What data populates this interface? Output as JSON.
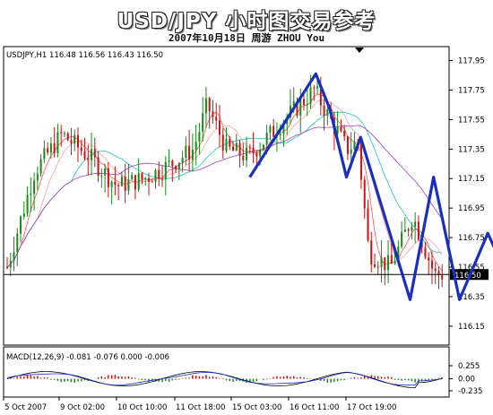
{
  "header": {
    "title": "USD/JPY 小时图交易参考",
    "subtitle": "2007年10月18日    周游 ZHOU You"
  },
  "chart_data": [
    {
      "type": "candlestick",
      "info_label": "USDJPY,H1  116.48 116.56 116.43 116.50",
      "price_axis": {
        "ylim": [
          116.04,
          118.02
        ],
        "ticks": [
          "117.95",
          "117.75",
          "117.55",
          "117.35",
          "117.15",
          "116.95",
          "116.75",
          "116.55",
          "116.35",
          "116.15"
        ]
      },
      "current_price": "116.50",
      "x_labels": [
        "5 Oct 2007",
        "9 Oct 02:00",
        "10 Oct 10:00",
        "11 Oct 18:00",
        "15 Oct 03:00",
        "16 Oct 11:00",
        "17 Oct 19:00"
      ],
      "colors": {
        "bull": "#1a8a1a",
        "bear": "#c81414",
        "ma1": "#ff5050",
        "ma2": "#ff9f9f",
        "ma3": "#20c0c0",
        "ma4": "#a040c0",
        "path": "#1a2fbf"
      },
      "projection_path": [
        {
          "x": 103,
          "y": 117.16
        },
        {
          "x": 131,
          "y": 117.86
        },
        {
          "x": 137,
          "y": 117.62
        },
        {
          "x": 144,
          "y": 117.16
        },
        {
          "x": 150,
          "y": 117.43
        },
        {
          "x": 171,
          "y": 116.33
        },
        {
          "x": 181,
          "y": 117.16
        },
        {
          "x": 192,
          "y": 116.33
        },
        {
          "x": 204,
          "y": 116.78
        },
        {
          "x": 222,
          "y": 116.14
        }
      ]
    },
    {
      "type": "histogram",
      "info_label": "MACD(12,26,9) -0.081 -0.076 0.000 -0.006",
      "ticks": [
        "0.255",
        "0.00",
        "-0.235"
      ],
      "ylim": [
        -0.34,
        0.36
      ]
    }
  ]
}
